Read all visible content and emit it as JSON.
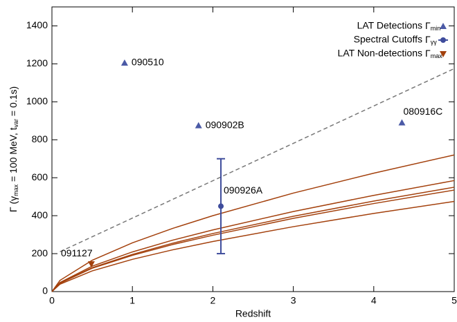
{
  "chart_data": {
    "type": "scatter",
    "xlabel": "Redshift",
    "ylabel": [
      "Γ (γ",
      "max",
      " = 100 MeV, t",
      "var",
      " = 0.1s)"
    ],
    "xlim": [
      0,
      5
    ],
    "xticks": [
      0,
      1,
      2,
      3,
      4,
      5
    ],
    "ylim": [
      0,
      1500
    ],
    "yticks": [
      0,
      200,
      400,
      600,
      800,
      1000,
      1200,
      1400
    ],
    "legend": "upper right",
    "series": [
      {
        "name": "LAT Detections",
        "symbol": "Γ",
        "symbol_sub": "min",
        "marker": "triangle-up",
        "color": "#4b5aa6",
        "x": [
          0.903,
          1.822,
          4.35
        ],
        "values": [
          1205,
          875,
          890
        ],
        "labels": [
          "090510",
          "090902B",
          "080916C"
        ]
      },
      {
        "name": "Spectral Cutoffs",
        "symbol": "Γ",
        "symbol_sub": "γγ",
        "marker": "circle",
        "color": "#3e4c9c",
        "x": [
          2.1
        ],
        "values": [
          450
        ],
        "errors": [
          250
        ],
        "labels": [
          "090926A"
        ]
      },
      {
        "name": "LAT Non-detections",
        "symbol": "Γ",
        "symbol_sub": "max",
        "marker": "triangle-down",
        "color": "#a3400c",
        "x": [
          0.49
        ],
        "values": [
          145
        ],
        "labels": [
          "091127"
        ]
      }
    ],
    "lines": [
      {
        "color": "#777777",
        "dash": true,
        "x": [
          0.1,
          5
        ],
        "values": [
          210,
          1175
        ]
      },
      {
        "color": "#a3400c",
        "dash": false,
        "x": [
          0,
          0.1,
          0.5,
          1,
          1.5,
          2,
          3,
          4,
          5
        ],
        "values": [
          0,
          59,
          165,
          257,
          333,
          400,
          519,
          624,
          720
        ]
      },
      {
        "color": "#a3400c",
        "dash": false,
        "x": [
          0,
          0.1,
          0.5,
          1,
          1.5,
          2,
          3,
          4,
          5
        ],
        "values": [
          0,
          48,
          134,
          209,
          271,
          325,
          422,
          507,
          585
        ]
      },
      {
        "color": "#a3400c",
        "dash": false,
        "x": [
          0,
          0.1,
          0.5,
          1,
          1.5,
          2,
          3,
          4,
          5
        ],
        "values": [
          0,
          45,
          126,
          196,
          255,
          306,
          397,
          477,
          550
        ]
      },
      {
        "color": "#a3400c",
        "dash": false,
        "x": [
          0,
          0.1,
          0.5,
          1,
          1.5,
          2,
          3,
          4,
          5
        ],
        "values": [
          0,
          44,
          123,
          191,
          248,
          297,
          386,
          464,
          535
        ]
      },
      {
        "color": "#a3400c",
        "dash": false,
        "x": [
          0,
          0.1,
          0.5,
          1,
          1.5,
          2,
          3,
          4,
          5
        ],
        "values": [
          0,
          39,
          109,
          170,
          220,
          264,
          342,
          412,
          475
        ]
      }
    ]
  }
}
